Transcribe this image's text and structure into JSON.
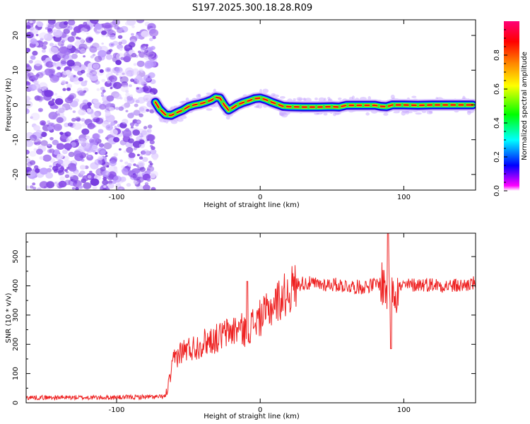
{
  "title": "S197.2025.300.18.28.R09",
  "colors": {
    "snr_line": "#ee2222",
    "ridge_center": "#ee1111",
    "noise": "#7733dd",
    "colorbar_stops": [
      "#ff00ff",
      "#0000ff",
      "#00ffff",
      "#00ff00",
      "#ffff00",
      "#ff8800",
      "#ff0000",
      "#ff0077"
    ]
  },
  "chart_data": [
    {
      "type": "heatmap",
      "name": "spectrogram",
      "xlabel": "Height of straight line (km)",
      "ylabel": "Frequency (Hz)",
      "xlim": [
        -163,
        150
      ],
      "ylim": [
        -24.5,
        24.5
      ],
      "xticks": [
        -100,
        0,
        100
      ],
      "xtick_labels": [
        "-100",
        "0",
        "100"
      ],
      "yticks": [
        -20,
        -10,
        0,
        10,
        20
      ],
      "ytick_labels": [
        "-20",
        "-10",
        "0",
        "10",
        "20"
      ],
      "noise_region_x": [
        -163,
        -73
      ],
      "ridge": {
        "x": [
          -73,
          -70,
          -66,
          -62,
          -58,
          -54,
          -50,
          -46,
          -42,
          -38,
          -34,
          -31,
          -28,
          -25,
          -22,
          -19,
          -16,
          -12,
          -8,
          -4,
          0,
          4,
          8,
          12,
          16,
          20,
          30,
          40,
          50,
          55,
          60,
          70,
          80,
          84,
          88,
          92,
          100,
          110,
          120,
          130,
          140,
          148
        ],
        "y": [
          0.8,
          -1.2,
          -2.8,
          -3.0,
          -2.2,
          -1.5,
          -0.5,
          0.0,
          0.3,
          0.8,
          1.4,
          2.2,
          2.0,
          0.0,
          -1.5,
          -0.8,
          0.0,
          0.7,
          1.2,
          1.8,
          2.0,
          1.5,
          0.8,
          0.2,
          -0.4,
          -0.5,
          -0.6,
          -0.6,
          -0.5,
          -0.6,
          -0.1,
          -0.1,
          -0.1,
          -0.4,
          -0.5,
          0.0,
          0.0,
          -0.1,
          0.0,
          0.0,
          0.0,
          0.0
        ]
      },
      "colorbar": {
        "label": "Normalized spectral amplitude",
        "range": [
          0,
          1
        ],
        "ticks": [
          0.0,
          0.2,
          0.4,
          0.6,
          0.8
        ],
        "tick_labels": [
          "0.0",
          "0.2",
          "0.4",
          "0.6",
          "0.8"
        ]
      }
    },
    {
      "type": "line",
      "name": "snr",
      "xlabel": "Height of straight line (km)",
      "ylabel": "SNR (10 * v/v)",
      "xlim": [
        -163,
        150
      ],
      "ylim": [
        0,
        580
      ],
      "xticks": [
        -100,
        0,
        100
      ],
      "xtick_labels": [
        "-100",
        "0",
        "100"
      ],
      "yticks": [
        0,
        100,
        200,
        300,
        400,
        500
      ],
      "ytick_labels": [
        "0",
        "100",
        "200",
        "300",
        "400",
        "500"
      ],
      "series": [
        {
          "name": "SNR",
          "x": [
            -163,
            -140,
            -120,
            -100,
            -80,
            -70,
            -66,
            -64,
            -62,
            -60,
            -55,
            -50,
            -45,
            -40,
            -35,
            -30,
            -25,
            -20,
            -15,
            -10,
            -5,
            0,
            5,
            10,
            15,
            20,
            25,
            30,
            40,
            50,
            60,
            70,
            80,
            85,
            88,
            90,
            92,
            94,
            100,
            110,
            120,
            130,
            140,
            150
          ],
          "y": [
            18,
            18,
            18,
            18,
            20,
            20,
            22,
            60,
            100,
            150,
            175,
            185,
            190,
            205,
            215,
            220,
            235,
            245,
            255,
            245,
            270,
            290,
            310,
            340,
            360,
            380,
            405,
            410,
            405,
            405,
            400,
            395,
            405,
            410,
            390,
            400,
            420,
            390,
            400,
            405,
            405,
            400,
            400,
            410
          ]
        }
      ],
      "highlights": [
        {
          "x": -9,
          "y": 415
        },
        {
          "x": 89,
          "y": 580
        },
        {
          "x": 91,
          "y": 185
        }
      ]
    }
  ]
}
